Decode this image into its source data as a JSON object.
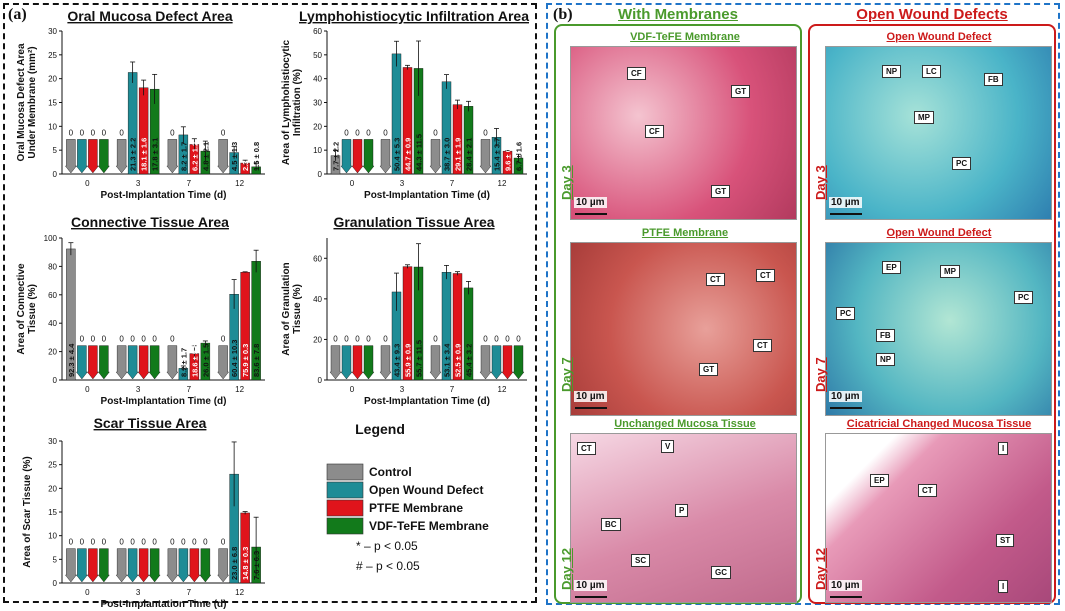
{
  "panel_a_label": "(a)",
  "panel_b_label": "(b)",
  "colors": {
    "control": "#8c8c8c",
    "owd": "#1e8c96",
    "ptfe": "#e0141b",
    "vdf": "#127a1b",
    "green_title": "#4a9a2c",
    "red_title": "#cc1a1a",
    "blue_border": "#1f74c8"
  },
  "legend": {
    "title": "Legend",
    "items": [
      "Control",
      "Open Wound Defect",
      "PTFE Membrane",
      "VDF-TeFE Membrane"
    ],
    "notes": [
      "* – p < 0.05",
      "# – p < 0.05"
    ]
  },
  "chart_data": [
    {
      "type": "bar",
      "id": "oral",
      "title": "Oral Mucosa Defect Area",
      "ylabel": [
        "Oral Mucosa Defect Area",
        "Under Membrane (mm²)"
      ],
      "xlabel": "Post-Implantation Time (d)",
      "categories": [
        "0",
        "3",
        "7",
        "12"
      ],
      "ylim": [
        0,
        30
      ],
      "yticks": [
        0,
        5,
        10,
        15,
        20,
        25,
        30
      ],
      "series": [
        {
          "name": "Control",
          "values": [
            0,
            0,
            0,
            0
          ]
        },
        {
          "name": "Open Wound Defect",
          "values": [
            0,
            21.3,
            8.2,
            4.5
          ]
        },
        {
          "name": "PTFE Membrane",
          "values": [
            0,
            18.1,
            6.2,
            2.3
          ]
        },
        {
          "name": "VDF-TeFE Membrane",
          "values": [
            0,
            17.8,
            4.8,
            1.5
          ]
        }
      ],
      "errors": [
        [
          0,
          0,
          0,
          0
        ],
        [
          0,
          2.2,
          1.7,
          1.3
        ],
        [
          0,
          1.6,
          1.2,
          0.6
        ],
        [
          0,
          3.1,
          2.1,
          0.8
        ]
      ],
      "labels": [
        [
          "0",
          "0",
          "0",
          "0"
        ],
        [
          "0",
          "21.3 ± 2.2",
          "8.2 ± 1.7",
          "4.5 ± 1.3"
        ],
        [
          "0",
          "18.1 ± 1.6",
          "6.2 ± 1.2",
          "2.3 ± 0.6"
        ],
        [
          "0",
          "17.8 ± 3.1",
          "4.8 ± 2.1",
          "1.5 ± 0.8"
        ]
      ]
    },
    {
      "type": "bar",
      "id": "lymph",
      "title": "Lymphohistiocytic Infiltration Area",
      "ylabel": [
        "Area of Lymphohistiocytic",
        "Infiltration (%)"
      ],
      "xlabel": "Post-Implantation Time (d)",
      "categories": [
        "0",
        "3",
        "7",
        "12"
      ],
      "ylim": [
        0,
        60
      ],
      "yticks": [
        0,
        10,
        20,
        30,
        40,
        50,
        60
      ],
      "series": [
        {
          "name": "Control",
          "values": [
            7.7,
            0,
            0,
            0
          ]
        },
        {
          "name": "Open Wound Defect",
          "values": [
            0,
            50.4,
            38.7,
            15.4
          ]
        },
        {
          "name": "PTFE Membrane",
          "values": [
            0,
            44.7,
            29.1,
            9.6
          ]
        },
        {
          "name": "VDF-TeFE Membrane",
          "values": [
            0,
            44.3,
            28.4,
            6.7
          ]
        }
      ],
      "errors": [
        [
          2.2,
          0,
          0,
          0
        ],
        [
          0,
          5.3,
          3.0,
          3.7
        ],
        [
          0,
          0.9,
          1.9,
          0.3
        ],
        [
          0,
          11.5,
          2.1,
          1.6
        ]
      ],
      "labels": [
        [
          "7.7 ± 2.2",
          "0",
          "0",
          "0"
        ],
        [
          "0",
          "50.4 ± 5.3",
          "38.7 ± 3.0",
          "15.4 ± 3.7"
        ],
        [
          "0",
          "44.7 ± 0.9",
          "29.1 ± 1.9",
          "9.6 ± 0.3"
        ],
        [
          "0",
          "44.3 ± 11.5",
          "28.4 ± 2.1",
          "6.7 ± 1.6"
        ]
      ]
    },
    {
      "type": "bar",
      "id": "conn",
      "title": "Connective Tissue Area",
      "ylabel": [
        "Area of Connective",
        "Tissue (%)"
      ],
      "xlabel": "Post-Implantation Time (d)",
      "categories": [
        "0",
        "3",
        "7",
        "12"
      ],
      "ylim": [
        0,
        100
      ],
      "yticks": [
        0,
        20,
        40,
        60,
        80,
        100
      ],
      "series": [
        {
          "name": "Control",
          "values": [
            92.3,
            0,
            0,
            0
          ]
        },
        {
          "name": "Open Wound Defect",
          "values": [
            0,
            0,
            8.2,
            60.4
          ]
        },
        {
          "name": "PTFE Membrane",
          "values": [
            0,
            0,
            18.6,
            75.9
          ]
        },
        {
          "name": "VDF-TeFE Membrane",
          "values": [
            0,
            0,
            26.0,
            83.6
          ]
        }
      ],
      "errors": [
        [
          4.4,
          0,
          0,
          0
        ],
        [
          0,
          0,
          1.7,
          10.3
        ],
        [
          0,
          0,
          5.5,
          0.3
        ],
        [
          0,
          0,
          1.5,
          7.8
        ]
      ],
      "labels": [
        [
          "92.3 ± 4.4",
          "0",
          "0",
          "0"
        ],
        [
          "0",
          "0",
          "8.2 ± 1.7",
          "60.4 ± 10.3"
        ],
        [
          "0",
          "0",
          "18.6 ± 5.5",
          "75.9 ± 0.3"
        ],
        [
          "0",
          "0",
          "26.0 ± 1.5",
          "83.6 ± 7.8"
        ]
      ]
    },
    {
      "type": "bar",
      "id": "gran",
      "title": "Granulation Tissue Area",
      "ylabel": [
        "Area of Granulation",
        "Tissue (%)"
      ],
      "xlabel": "Post-Implantation Time (d)",
      "categories": [
        "0",
        "3",
        "7",
        "12"
      ],
      "ylim": [
        0,
        70
      ],
      "yticks": [
        0,
        20,
        40,
        60
      ],
      "series": [
        {
          "name": "Control",
          "values": [
            0,
            0,
            0,
            0
          ]
        },
        {
          "name": "Open Wound Defect",
          "values": [
            0,
            43.4,
            53.1,
            0
          ]
        },
        {
          "name": "PTFE Membrane",
          "values": [
            0,
            55.9,
            52.5,
            0
          ]
        },
        {
          "name": "VDF-TeFE Membrane",
          "values": [
            0,
            55.7,
            45.4,
            0
          ]
        }
      ],
      "errors": [
        [
          0,
          0,
          0,
          0
        ],
        [
          0,
          9.3,
          3.4,
          0
        ],
        [
          0,
          0.9,
          0.9,
          0
        ],
        [
          0,
          11.5,
          3.2,
          0
        ]
      ],
      "labels": [
        [
          "0",
          "0",
          "0",
          "0"
        ],
        [
          "0",
          "43.4 ± 9.3",
          "53.1 ± 3.4",
          "0"
        ],
        [
          "0",
          "55.9 ± 0.9",
          "52.5 ± 0.9",
          "0"
        ],
        [
          "0",
          "55.7 ± 11.5",
          "45.4 ± 3.2",
          "0"
        ]
      ]
    },
    {
      "type": "bar",
      "id": "scar",
      "title": "Scar Tissue Area",
      "ylabel": [
        "Area of Scar Tissue (%)"
      ],
      "xlabel": "Post-Implantation Time (d)",
      "categories": [
        "0",
        "3",
        "7",
        "12"
      ],
      "ylim": [
        0,
        30
      ],
      "yticks": [
        0,
        5,
        10,
        15,
        20,
        25,
        30
      ],
      "series": [
        {
          "name": "Control",
          "values": [
            0,
            0,
            0,
            0
          ]
        },
        {
          "name": "Open Wound Defect",
          "values": [
            0,
            0,
            0,
            23.0
          ]
        },
        {
          "name": "PTFE Membrane",
          "values": [
            0,
            0,
            0,
            14.8
          ]
        },
        {
          "name": "VDF-TeFE Membrane",
          "values": [
            0,
            0,
            0,
            7.6
          ]
        }
      ],
      "errors": [
        [
          0,
          0,
          0,
          0
        ],
        [
          0,
          0,
          0,
          6.8
        ],
        [
          0,
          0,
          0,
          0.3
        ],
        [
          0,
          0,
          0,
          6.3
        ]
      ],
      "labels": [
        [
          "0",
          "0",
          "0",
          "0"
        ],
        [
          "0",
          "0",
          "0",
          "23.0 ± 6.8"
        ],
        [
          "0",
          "0",
          "0",
          "14.8 ± 0.3"
        ],
        [
          "0",
          "0",
          "0",
          "7.6 ± 6.3"
        ]
      ]
    }
  ],
  "histology": {
    "col_left_title": "With Membranes",
    "col_right_title": "Open Wound Defects",
    "panels": [
      {
        "title": "VDF-TeFE Membrane",
        "day": "Day 3",
        "scale": "10 µm",
        "callouts": [
          "CF",
          "GT",
          "CF",
          "GT"
        ]
      },
      {
        "title": "PTFE Membrane",
        "day": "Day 7",
        "scale": "10 µm",
        "callouts": [
          "CT",
          "CT",
          "CT",
          "GT"
        ]
      },
      {
        "title": "Unchanged Mucosa Tissue",
        "day": "Day 12",
        "scale": "10 µm",
        "callouts": [
          "CT",
          "V",
          "P",
          "BC",
          "SC",
          "GC"
        ]
      },
      {
        "title": "Open Wound Defect",
        "day": "Day 3",
        "scale": "10 µm",
        "callouts": [
          "NP",
          "LC",
          "FB",
          "MP",
          "PC"
        ]
      },
      {
        "title": "Open Wound Defect",
        "day": "Day 7",
        "scale": "10 µm",
        "callouts": [
          "EP",
          "MP",
          "PC",
          "PC",
          "FB",
          "NP"
        ]
      },
      {
        "title": "Cicatricial Changed Mucosa Tissue",
        "day": "Day 12",
        "scale": "10 µm",
        "callouts": [
          "I",
          "EP",
          "CT",
          "ST",
          "I"
        ]
      }
    ]
  }
}
